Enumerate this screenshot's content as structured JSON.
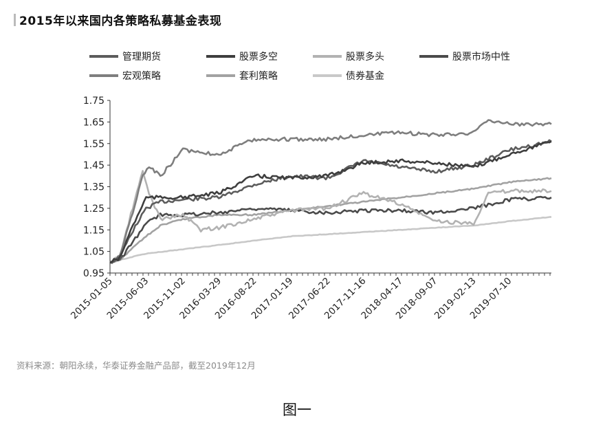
{
  "chart_data": {
    "type": "line",
    "title": "2015年以来国内各策略私募基金表现",
    "xlabel": "",
    "ylabel": "",
    "ylim": [
      0.95,
      1.75
    ],
    "yticks": [
      "1.75",
      "1.65",
      "1.55",
      "1.45",
      "1.35",
      "1.25",
      "1.15",
      "1.05",
      "0.95"
    ],
    "xticks": [
      "2015-01-05",
      "2015-06-03",
      "2015-11-02",
      "2016-03-29",
      "2016-08-22",
      "2017-01-19",
      "2017-06-22",
      "2017-11-16",
      "2018-04-17",
      "2018-09-07",
      "2019-02-13",
      "2019-07-10"
    ],
    "x_end": "2019-12",
    "grid": false,
    "legend_position": "top",
    "series": [
      {
        "name": "管理期货",
        "color": "#5c5c5c",
        "points": [
          [
            "2015-01-05",
            1.0
          ],
          [
            "2015-02-15",
            1.02
          ],
          [
            "2015-04-01",
            1.13
          ],
          [
            "2015-06-03",
            1.25
          ],
          [
            "2015-08-01",
            1.28
          ],
          [
            "2015-11-02",
            1.29
          ],
          [
            "2016-03-29",
            1.3
          ],
          [
            "2016-08-22",
            1.36
          ],
          [
            "2017-01-19",
            1.4
          ],
          [
            "2017-06-22",
            1.39
          ],
          [
            "2017-11-16",
            1.47
          ],
          [
            "2018-04-17",
            1.44
          ],
          [
            "2018-09-07",
            1.42
          ],
          [
            "2019-02-13",
            1.45
          ],
          [
            "2019-07-10",
            1.52
          ],
          [
            "2019-12-31",
            1.56
          ]
        ]
      },
      {
        "name": "股票多空",
        "color": "#3e3e3e",
        "points": [
          [
            "2015-01-05",
            1.0
          ],
          [
            "2015-02-15",
            1.02
          ],
          [
            "2015-04-01",
            1.15
          ],
          [
            "2015-06-03",
            1.3
          ],
          [
            "2015-08-01",
            1.3
          ],
          [
            "2015-11-02",
            1.3
          ],
          [
            "2016-03-29",
            1.32
          ],
          [
            "2016-08-22",
            1.4
          ],
          [
            "2017-01-19",
            1.39
          ],
          [
            "2017-06-22",
            1.4
          ],
          [
            "2017-11-16",
            1.46
          ],
          [
            "2018-04-17",
            1.47
          ],
          [
            "2018-09-07",
            1.46
          ],
          [
            "2019-02-13",
            1.44
          ],
          [
            "2019-07-10",
            1.5
          ],
          [
            "2019-12-31",
            1.56
          ]
        ]
      },
      {
        "name": "股票多头",
        "color": "#b2b2b2",
        "points": [
          [
            "2015-01-05",
            1.0
          ],
          [
            "2015-02-15",
            1.03
          ],
          [
            "2015-04-01",
            1.22
          ],
          [
            "2015-05-20",
            1.42
          ],
          [
            "2015-06-15",
            1.32
          ],
          [
            "2015-08-01",
            1.2
          ],
          [
            "2015-11-02",
            1.22
          ],
          [
            "2016-01-15",
            1.15
          ],
          [
            "2016-03-29",
            1.16
          ],
          [
            "2016-08-22",
            1.2
          ],
          [
            "2017-01-19",
            1.24
          ],
          [
            "2017-06-22",
            1.25
          ],
          [
            "2017-11-16",
            1.32
          ],
          [
            "2018-04-17",
            1.27
          ],
          [
            "2018-09-07",
            1.19
          ],
          [
            "2019-02-13",
            1.18
          ],
          [
            "2019-04-15",
            1.32
          ],
          [
            "2019-07-10",
            1.33
          ],
          [
            "2019-12-31",
            1.33
          ]
        ]
      },
      {
        "name": "股票市场中性",
        "color": "#4a4a4a",
        "points": [
          [
            "2015-01-05",
            1.0
          ],
          [
            "2015-02-15",
            1.01
          ],
          [
            "2015-04-01",
            1.08
          ],
          [
            "2015-06-03",
            1.18
          ],
          [
            "2015-08-01",
            1.22
          ],
          [
            "2015-11-02",
            1.22
          ],
          [
            "2016-03-29",
            1.23
          ],
          [
            "2016-08-22",
            1.25
          ],
          [
            "2017-01-19",
            1.24
          ],
          [
            "2017-06-22",
            1.23
          ],
          [
            "2017-11-16",
            1.24
          ],
          [
            "2018-04-17",
            1.24
          ],
          [
            "2018-09-07",
            1.23
          ],
          [
            "2019-02-13",
            1.25
          ],
          [
            "2019-07-10",
            1.29
          ],
          [
            "2019-12-31",
            1.3
          ]
        ]
      },
      {
        "name": "宏观策略",
        "color": "#7e7e7e",
        "points": [
          [
            "2015-01-05",
            1.0
          ],
          [
            "2015-02-15",
            1.03
          ],
          [
            "2015-04-01",
            1.2
          ],
          [
            "2015-05-20",
            1.4
          ],
          [
            "2015-06-15",
            1.44
          ],
          [
            "2015-08-01",
            1.4
          ],
          [
            "2015-11-02",
            1.52
          ],
          [
            "2016-03-29",
            1.5
          ],
          [
            "2016-08-22",
            1.57
          ],
          [
            "2017-01-19",
            1.57
          ],
          [
            "2017-06-22",
            1.57
          ],
          [
            "2017-11-16",
            1.59
          ],
          [
            "2018-04-17",
            1.6
          ],
          [
            "2018-09-07",
            1.59
          ],
          [
            "2019-02-13",
            1.6
          ],
          [
            "2019-04-15",
            1.66
          ],
          [
            "2019-07-10",
            1.64
          ],
          [
            "2019-12-31",
            1.64
          ]
        ]
      },
      {
        "name": "套利策略",
        "color": "#a2a2a2",
        "points": [
          [
            "2015-01-05",
            1.0
          ],
          [
            "2015-02-15",
            1.01
          ],
          [
            "2015-04-01",
            1.06
          ],
          [
            "2015-06-03",
            1.12
          ],
          [
            "2015-08-01",
            1.17
          ],
          [
            "2015-11-02",
            1.2
          ],
          [
            "2016-03-29",
            1.22
          ],
          [
            "2016-08-22",
            1.22
          ],
          [
            "2017-01-19",
            1.24
          ],
          [
            "2017-06-22",
            1.26
          ],
          [
            "2017-11-16",
            1.28
          ],
          [
            "2018-04-17",
            1.3
          ],
          [
            "2018-09-07",
            1.32
          ],
          [
            "2019-02-13",
            1.34
          ],
          [
            "2019-07-10",
            1.37
          ],
          [
            "2019-12-31",
            1.39
          ]
        ]
      },
      {
        "name": "债券基金",
        "color": "#c8c8c8",
        "points": [
          [
            "2015-01-05",
            1.0
          ],
          [
            "2015-06-03",
            1.04
          ],
          [
            "2015-11-02",
            1.06
          ],
          [
            "2016-03-29",
            1.08
          ],
          [
            "2016-08-22",
            1.1
          ],
          [
            "2017-01-19",
            1.12
          ],
          [
            "2017-06-22",
            1.13
          ],
          [
            "2017-11-16",
            1.14
          ],
          [
            "2018-04-17",
            1.15
          ],
          [
            "2018-09-07",
            1.16
          ],
          [
            "2019-02-13",
            1.17
          ],
          [
            "2019-07-10",
            1.19
          ],
          [
            "2019-12-31",
            1.21
          ]
        ]
      }
    ]
  },
  "source_note": "资料来源：朝阳永续，华泰证券金融产品部，截至2019年12月",
  "figure_caption": "图一"
}
